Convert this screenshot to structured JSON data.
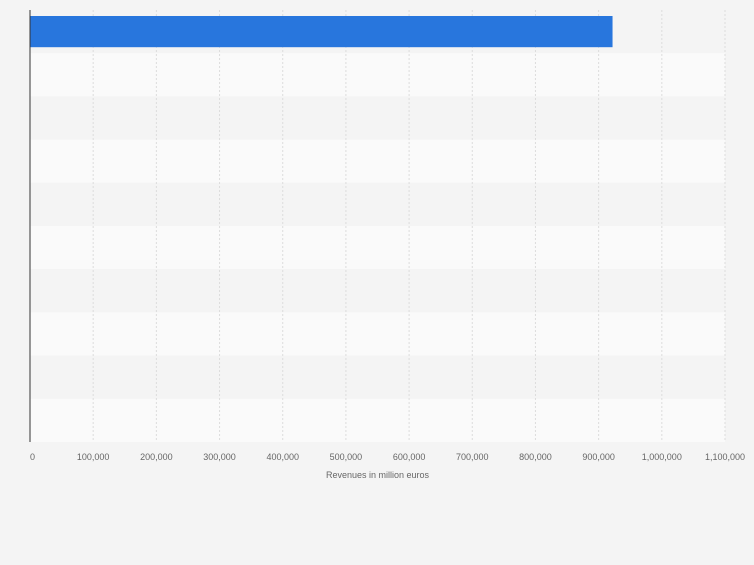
{
  "chart_data": {
    "type": "bar",
    "orientation": "horizontal",
    "categories": [
      "",
      "",
      "",
      "",
      "",
      "",
      "",
      "",
      "",
      ""
    ],
    "values": [
      922000,
      null,
      null,
      null,
      null,
      null,
      null,
      null,
      null,
      null
    ],
    "xlabel": "Revenues in million euros",
    "ylabel": "",
    "xlim": [
      0,
      1100000
    ],
    "xticks": [
      0,
      100000,
      200000,
      300000,
      400000,
      500000,
      600000,
      700000,
      800000,
      900000,
      1000000,
      1100000
    ],
    "xtick_labels": [
      "0",
      "100,000",
      "200,000",
      "300,000",
      "400,000",
      "500,000",
      "600,000",
      "700,000",
      "800,000",
      "900,000",
      "1,000,000",
      "1,100,000"
    ],
    "grid": true,
    "bar_color": "#2876dd",
    "band_colors": [
      "#f4f4f4",
      "#fafafa"
    ],
    "grid_color": "#dcdcdc"
  }
}
